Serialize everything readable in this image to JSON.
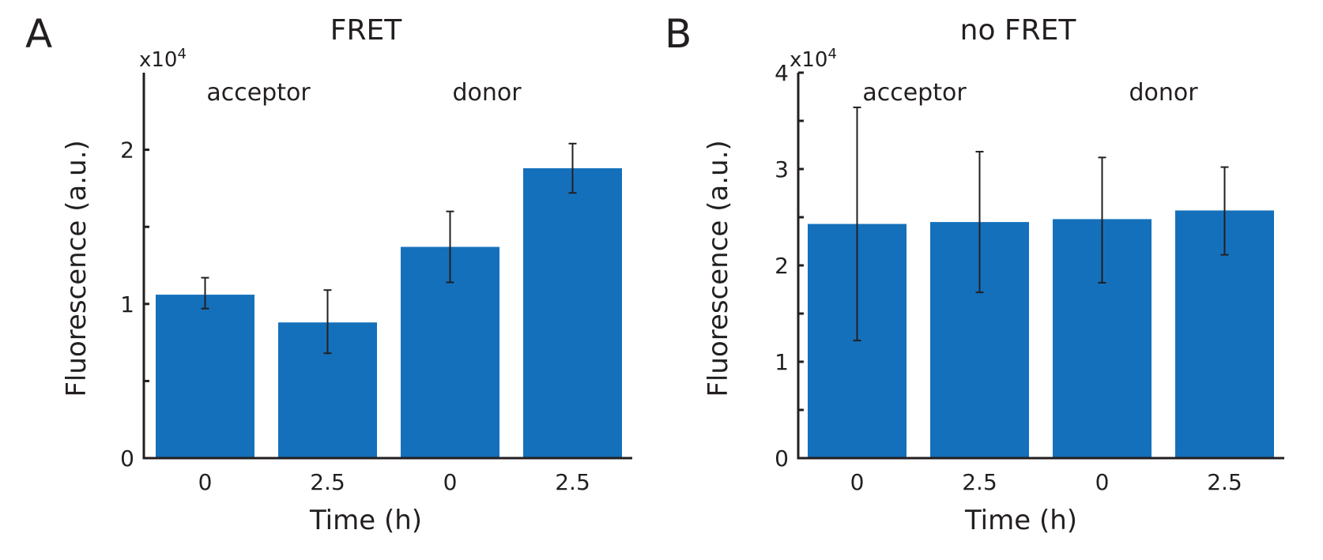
{
  "chart_data": [
    {
      "panel": "A",
      "type": "bar",
      "title": "FRET",
      "xlabel": "Time (h)",
      "ylabel": "Fluorescence (a.u.)",
      "y_multiplier": {
        "base": "x10",
        "exponent": "4"
      },
      "ylim": [
        0,
        2.5
      ],
      "yticks": [
        0,
        0.5,
        1,
        1.5,
        2,
        2.5
      ],
      "ytick_labels": [
        "0",
        "",
        "1",
        "",
        "2",
        ""
      ],
      "categories": [
        "0",
        "2.5",
        "0",
        "2.5"
      ],
      "groups": [
        {
          "label": "acceptor",
          "members": [
            0,
            1
          ]
        },
        {
          "label": "donor",
          "members": [
            2,
            3
          ]
        }
      ],
      "values": [
        1.06,
        0.88,
        1.37,
        1.88
      ],
      "error_low": [
        0.97,
        0.68,
        1.14,
        1.72
      ],
      "error_high": [
        1.17,
        1.09,
        1.6,
        2.04
      ],
      "bar_color": "#1470bb"
    },
    {
      "panel": "B",
      "type": "bar",
      "title": "no FRET",
      "xlabel": "Time (h)",
      "ylabel": "Fluorescence (a.u.)",
      "y_multiplier": {
        "base": "x10",
        "exponent": "4"
      },
      "ylim": [
        0,
        4
      ],
      "yticks": [
        0,
        0.5,
        1,
        1.5,
        2,
        2.5,
        3,
        3.5,
        4
      ],
      "ytick_labels": [
        "0",
        "",
        "1",
        "",
        "2",
        "",
        "3",
        "",
        "4"
      ],
      "categories": [
        "0",
        "2.5",
        "0",
        "2.5"
      ],
      "groups": [
        {
          "label": "acceptor",
          "members": [
            0,
            1
          ]
        },
        {
          "label": "donor",
          "members": [
            2,
            3
          ]
        }
      ],
      "values": [
        2.43,
        2.45,
        2.48,
        2.57
      ],
      "error_low": [
        1.22,
        1.72,
        1.82,
        2.11
      ],
      "error_high": [
        3.64,
        3.18,
        3.12,
        3.02
      ],
      "bar_color": "#1470bb"
    }
  ]
}
